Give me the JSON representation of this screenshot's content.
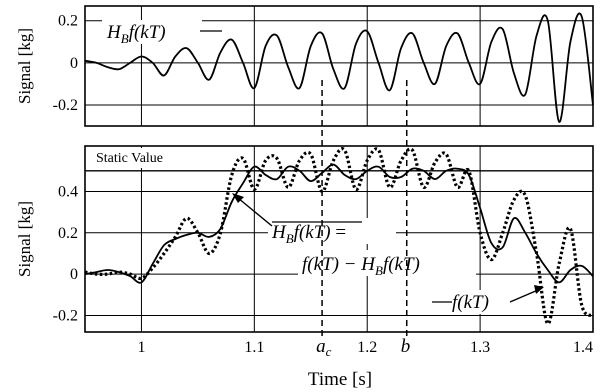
{
  "chart_data": [
    {
      "type": "line",
      "xlabel": "",
      "ylabel": "Signal [kg]",
      "xlim": [
        0.95,
        1.4
      ],
      "ylim": [
        -0.3,
        0.27
      ],
      "yticks": [
        "0.2",
        "0",
        "-0.2"
      ],
      "series": [
        {
          "name": "H_B f(kT)",
          "x": [
            0.95,
            0.96,
            0.97,
            0.98,
            0.99,
            1.0,
            1.01,
            1.02,
            1.03,
            1.04,
            1.05,
            1.06,
            1.07,
            1.08,
            1.09,
            1.1,
            1.11,
            1.12,
            1.13,
            1.14,
            1.15,
            1.16,
            1.17,
            1.18,
            1.19,
            1.2,
            1.21,
            1.22,
            1.23,
            1.24,
            1.25,
            1.26,
            1.27,
            1.28,
            1.29,
            1.3,
            1.31,
            1.32,
            1.33,
            1.34,
            1.35,
            1.36,
            1.37,
            1.38,
            1.39,
            1.4
          ],
          "y": [
            0.01,
            0.0,
            -0.02,
            -0.03,
            0.0,
            0.03,
            0.0,
            -0.06,
            0.03,
            0.07,
            0.0,
            -0.08,
            0.05,
            0.11,
            0.0,
            -0.12,
            0.08,
            0.13,
            -0.02,
            -0.12,
            0.08,
            0.14,
            -0.03,
            -0.12,
            0.09,
            0.15,
            0.0,
            -0.13,
            0.07,
            0.14,
            0.0,
            -0.1,
            0.08,
            0.14,
            0.0,
            -0.1,
            0.1,
            0.16,
            -0.05,
            -0.15,
            0.13,
            0.2,
            -0.28,
            0.1,
            0.22,
            -0.2
          ]
        }
      ],
      "annotations": [
        {
          "text": "H",
          "sub": "B",
          "rest": "f(kT)"
        }
      ]
    },
    {
      "type": "line",
      "xlabel": "Time [s]",
      "ylabel": "Signal [kg]",
      "xlim": [
        0.95,
        1.4
      ],
      "ylim": [
        -0.28,
        0.62
      ],
      "xticks": [
        "1",
        "1.1",
        "1.2",
        "1.3",
        "1.4"
      ],
      "xtick_values": [
        1.0,
        1.1,
        1.2,
        1.3,
        1.4
      ],
      "yticks": [
        "0.4",
        "0.2",
        "0",
        "-0.2"
      ],
      "static_value": 0.5,
      "static_label": "Static Value",
      "markers": [
        {
          "label": "a",
          "sub": "c",
          "x": 1.16
        },
        {
          "label": "b",
          "x": 1.235
        }
      ],
      "series": [
        {
          "name": "f(kT)",
          "style": "dotted",
          "x": [
            0.95,
            0.96,
            0.97,
            0.98,
            0.99,
            1.0,
            1.01,
            1.02,
            1.03,
            1.04,
            1.05,
            1.06,
            1.07,
            1.08,
            1.09,
            1.1,
            1.11,
            1.12,
            1.13,
            1.14,
            1.15,
            1.16,
            1.17,
            1.18,
            1.19,
            1.2,
            1.21,
            1.22,
            1.23,
            1.24,
            1.25,
            1.26,
            1.27,
            1.28,
            1.29,
            1.3,
            1.31,
            1.32,
            1.33,
            1.34,
            1.35,
            1.36,
            1.37,
            1.38,
            1.39,
            1.4
          ],
          "y": [
            0.01,
            0.0,
            0.0,
            0.01,
            0.0,
            -0.02,
            0.03,
            0.1,
            0.18,
            0.27,
            0.2,
            0.1,
            0.2,
            0.48,
            0.56,
            0.41,
            0.55,
            0.56,
            0.42,
            0.55,
            0.58,
            0.4,
            0.55,
            0.6,
            0.41,
            0.55,
            0.6,
            0.42,
            0.55,
            0.6,
            0.42,
            0.54,
            0.58,
            0.42,
            0.5,
            0.2,
            0.07,
            0.2,
            0.36,
            0.38,
            0.1,
            -0.24,
            0.05,
            0.22,
            -0.15,
            -0.2
          ]
        },
        {
          "name": "H_B f(kT) overbar",
          "style": "solid",
          "x": [
            0.95,
            0.96,
            0.97,
            0.98,
            0.99,
            1.0,
            1.01,
            1.02,
            1.03,
            1.04,
            1.05,
            1.06,
            1.07,
            1.08,
            1.09,
            1.1,
            1.11,
            1.12,
            1.13,
            1.14,
            1.15,
            1.16,
            1.17,
            1.18,
            1.19,
            1.2,
            1.21,
            1.22,
            1.23,
            1.24,
            1.25,
            1.26,
            1.27,
            1.28,
            1.29,
            1.3,
            1.31,
            1.32,
            1.33,
            1.34,
            1.35,
            1.36,
            1.37,
            1.38,
            1.39,
            1.4
          ],
          "y": [
            0.0,
            0.01,
            0.02,
            0.01,
            -0.01,
            -0.04,
            0.05,
            0.14,
            0.17,
            0.19,
            0.2,
            0.18,
            0.22,
            0.35,
            0.44,
            0.52,
            0.48,
            0.46,
            0.52,
            0.5,
            0.45,
            0.49,
            0.53,
            0.48,
            0.46,
            0.5,
            0.52,
            0.47,
            0.47,
            0.51,
            0.5,
            0.46,
            0.5,
            0.51,
            0.48,
            0.32,
            0.15,
            0.13,
            0.27,
            0.2,
            0.1,
            0.02,
            -0.04,
            0.02,
            0.04,
            -0.01
          ]
        }
      ],
      "annotations": [
        {
          "text_over": "H",
          "sub": "B",
          "rest": "f(kT)",
          "suffix": " ="
        },
        {
          "text": "f(kT) − H",
          "sub": "B",
          "rest": "f(kT)"
        },
        {
          "text": "f(kT)"
        }
      ]
    }
  ]
}
